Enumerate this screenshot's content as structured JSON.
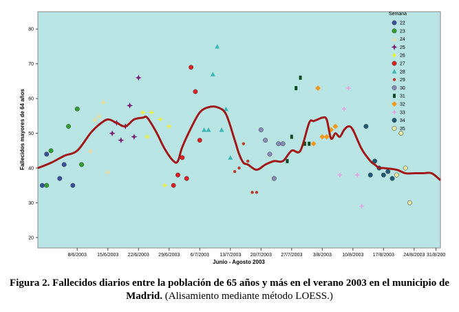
{
  "chart_data": {
    "type": "scatter",
    "title": "",
    "xlabel": "Junio - Agosto 2003",
    "ylabel": "Fallecidos mayores de 64 años",
    "xlim": [
      0,
      92
    ],
    "ylim": [
      17,
      85
    ],
    "x_ticks": [
      {
        "day": 9,
        "label": "8/6/2003"
      },
      {
        "day": 16,
        "label": "15/6/2003"
      },
      {
        "day": 23,
        "label": "22/6/2003"
      },
      {
        "day": 30,
        "label": "29/6/2003"
      },
      {
        "day": 37,
        "label": "6/7/2003"
      },
      {
        "day": 44,
        "label": "13/7/2003"
      },
      {
        "day": 51,
        "label": "20/7/2003"
      },
      {
        "day": 58,
        "label": "27/7/2003"
      },
      {
        "day": 65,
        "label": "3/8/2003"
      },
      {
        "day": 72,
        "label": "10/8/2003"
      },
      {
        "day": 79,
        "label": "17/8/2003"
      },
      {
        "day": 86,
        "label": "24/8/2003"
      },
      {
        "day": 91,
        "label": "31/8/200"
      }
    ],
    "y_ticks": [
      20,
      30,
      40,
      50,
      60,
      70,
      80
    ],
    "legend": {
      "title": "Semana",
      "position": "top-right",
      "entries": [
        {
          "label": "22",
          "color": "#3a4fa0",
          "marker": "circle"
        },
        {
          "label": "23",
          "color": "#2ea02e",
          "marker": "circle"
        },
        {
          "label": "24",
          "color": "#e6dca0",
          "marker": "triangle"
        },
        {
          "label": "25",
          "color": "#7a1e7a",
          "marker": "star"
        },
        {
          "label": "26",
          "color": "#f2f020",
          "marker": "plus"
        },
        {
          "label": "27",
          "color": "#e02020",
          "marker": "circle"
        },
        {
          "label": "28",
          "color": "#3cb8b4",
          "marker": "triangle"
        },
        {
          "label": "29",
          "color": "#c0392b",
          "marker": "dot"
        },
        {
          "label": "30",
          "color": "#8a8ab8",
          "marker": "circle"
        },
        {
          "label": "31",
          "color": "#0f4a26",
          "marker": "square"
        },
        {
          "label": "32",
          "color": "#f29a20",
          "marker": "diamond"
        },
        {
          "label": "33",
          "color": "#e8a0e8",
          "marker": "plus"
        },
        {
          "label": "34",
          "color": "#1e5a78",
          "marker": "circle"
        },
        {
          "label": "35",
          "color": "#e6e6a0",
          "marker": "circle"
        }
      ]
    },
    "series": [
      {
        "name": "22",
        "points": [
          [
            1,
            35
          ],
          [
            2,
            44
          ],
          [
            5,
            37
          ],
          [
            6,
            41
          ],
          [
            8,
            35
          ]
        ]
      },
      {
        "name": "23",
        "points": [
          [
            3,
            45
          ],
          [
            7,
            52
          ],
          [
            9,
            57
          ],
          [
            10,
            41
          ],
          [
            2,
            35
          ]
        ]
      },
      {
        "name": "24",
        "points": [
          [
            12,
            45
          ],
          [
            13,
            54
          ],
          [
            14,
            55
          ],
          [
            15,
            59
          ],
          [
            16,
            39
          ]
        ]
      },
      {
        "name": "25",
        "points": [
          [
            17,
            50
          ],
          [
            18,
            53
          ],
          [
            19,
            48
          ],
          [
            20,
            52
          ],
          [
            21,
            58
          ],
          [
            22,
            49
          ],
          [
            23,
            66
          ]
        ]
      },
      {
        "name": "26",
        "points": [
          [
            24,
            56
          ],
          [
            25,
            49
          ],
          [
            26,
            56
          ],
          [
            28,
            54
          ],
          [
            29,
            35
          ],
          [
            30,
            52
          ]
        ]
      },
      {
        "name": "27",
        "points": [
          [
            31,
            35
          ],
          [
            32,
            38
          ],
          [
            33,
            43
          ],
          [
            34,
            37
          ],
          [
            35,
            69
          ],
          [
            36,
            62
          ],
          [
            37,
            48
          ]
        ]
      },
      {
        "name": "28",
        "points": [
          [
            38,
            51
          ],
          [
            39,
            51
          ],
          [
            40,
            67
          ],
          [
            41,
            75
          ],
          [
            42,
            51
          ],
          [
            43,
            57
          ],
          [
            44,
            43
          ]
        ]
      },
      {
        "name": "29",
        "points": [
          [
            45,
            39
          ],
          [
            46,
            40
          ],
          [
            47,
            47
          ],
          [
            48,
            42
          ],
          [
            49,
            33
          ],
          [
            50,
            33
          ]
        ]
      },
      {
        "name": "30",
        "points": [
          [
            51,
            51
          ],
          [
            52,
            48
          ],
          [
            53,
            44
          ],
          [
            54,
            37
          ],
          [
            55,
            47
          ],
          [
            56,
            47
          ]
        ]
      },
      {
        "name": "31",
        "points": [
          [
            57,
            42
          ],
          [
            58,
            49
          ],
          [
            59,
            63
          ],
          [
            60,
            66
          ],
          [
            61,
            47
          ],
          [
            62,
            47
          ]
        ]
      },
      {
        "name": "32",
        "points": [
          [
            63,
            47
          ],
          [
            64,
            63
          ],
          [
            65,
            49
          ],
          [
            66,
            49
          ],
          [
            67,
            51
          ],
          [
            68,
            52
          ]
        ]
      },
      {
        "name": "33",
        "points": [
          [
            69,
            38
          ],
          [
            70,
            57
          ],
          [
            71,
            63
          ],
          [
            72,
            51
          ],
          [
            73,
            38
          ],
          [
            74,
            29
          ]
        ]
      },
      {
        "name": "34",
        "points": [
          [
            75,
            52
          ],
          [
            76,
            38
          ],
          [
            77,
            42
          ],
          [
            78,
            40
          ],
          [
            79,
            38
          ],
          [
            80,
            39
          ],
          [
            81,
            37
          ]
        ]
      },
      {
        "name": "35",
        "points": [
          [
            82,
            38
          ],
          [
            83,
            50
          ],
          [
            84,
            40
          ],
          [
            85,
            30
          ]
        ]
      }
    ],
    "loess": {
      "x": [
        0,
        3,
        6,
        9,
        12,
        14,
        16,
        18,
        20,
        22,
        24,
        25,
        27,
        29,
        31,
        32,
        33,
        35,
        37,
        39,
        41,
        43,
        45,
        46,
        47,
        48,
        50,
        52,
        54,
        56,
        58,
        60,
        62,
        63,
        64,
        65,
        66,
        67,
        68,
        69,
        70,
        71,
        72,
        74,
        76,
        77,
        78,
        79,
        82,
        84,
        86,
        88,
        90,
        92
      ],
      "y": [
        40,
        41.5,
        43.5,
        45,
        50,
        52.5,
        54,
        53,
        52,
        54,
        54.5,
        54.5,
        50.5,
        45.5,
        42,
        42,
        46,
        51.5,
        56,
        57.5,
        57.5,
        55.5,
        48,
        44,
        41.5,
        41,
        39.5,
        41,
        42,
        42,
        45,
        45,
        53,
        53.5,
        54,
        54.5,
        54,
        48.5,
        50,
        49,
        51,
        52,
        51,
        45.5,
        42,
        41,
        40,
        40,
        39.5,
        38.5,
        38.5,
        38.5,
        38.5,
        36.5
      ],
      "color": "#a01818"
    }
  },
  "caption": {
    "bold": "Figura 2. Fallecidos diarios entre la población de 65 años y más en el verano 2003 en el municipio de Madrid.",
    "normal": " (Alisamiento mediante método LOESS.)"
  }
}
